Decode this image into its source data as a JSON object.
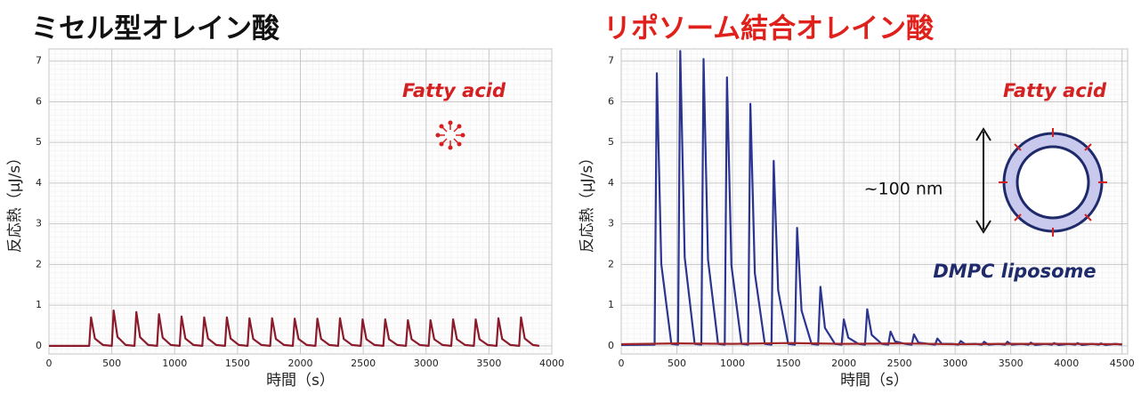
{
  "chart_data": [
    {
      "type": "line",
      "title": "ミセル型オレイン酸",
      "title_color": "#111111",
      "x_label": "時間（s）",
      "y_label": "反応熱（μJ/s）",
      "annotations": [
        "Fatty acid"
      ],
      "xlim": [
        0,
        4000
      ],
      "xticks": [
        0,
        500,
        1000,
        1500,
        2000,
        2500,
        3000,
        3500,
        4000
      ],
      "ylim": [
        -0.2,
        7.3
      ],
      "yticks": [
        0,
        1,
        2,
        3,
        4,
        5,
        6,
        7
      ],
      "grid": true,
      "series": [
        {
          "color": "#8b1a2a",
          "x": [
            0,
            320,
            335,
            365,
            430,
            500,
            515,
            545,
            610,
            680,
            695,
            725,
            790,
            860,
            875,
            905,
            970,
            1040,
            1055,
            1085,
            1150,
            1220,
            1235,
            1265,
            1330,
            1400,
            1415,
            1445,
            1510,
            1580,
            1595,
            1625,
            1690,
            1760,
            1775,
            1805,
            1870,
            1940,
            1955,
            1985,
            2050,
            2120,
            2135,
            2165,
            2230,
            2300,
            2315,
            2345,
            2410,
            2480,
            2495,
            2525,
            2590,
            2660,
            2675,
            2705,
            2770,
            2840,
            2855,
            2885,
            2950,
            3020,
            3035,
            3065,
            3130,
            3200,
            3215,
            3245,
            3310,
            3380,
            3395,
            3425,
            3490,
            3560,
            3575,
            3605,
            3670,
            3740,
            3755,
            3785,
            3850,
            3900
          ],
          "values": [
            0,
            0,
            0.7,
            0.18,
            0.02,
            0,
            0.87,
            0.22,
            0.02,
            0,
            0.83,
            0.21,
            0.02,
            0,
            0.78,
            0.2,
            0.02,
            0,
            0.72,
            0.18,
            0.02,
            0,
            0.7,
            0.18,
            0.02,
            0,
            0.7,
            0.18,
            0.02,
            0,
            0.68,
            0.17,
            0.02,
            0,
            0.68,
            0.17,
            0.02,
            0,
            0.67,
            0.17,
            0.02,
            0,
            0.67,
            0.17,
            0.02,
            0,
            0.68,
            0.17,
            0.02,
            0,
            0.65,
            0.16,
            0.02,
            0,
            0.65,
            0.16,
            0.02,
            0,
            0.63,
            0.16,
            0.02,
            0,
            0.63,
            0.16,
            0.02,
            0,
            0.65,
            0.16,
            0.02,
            0,
            0.65,
            0.16,
            0.02,
            0,
            0.68,
            0.17,
            0.02,
            0,
            0.7,
            0.18,
            0.02,
            0
          ]
        }
      ]
    },
    {
      "type": "line",
      "title": "リポソーム結合オレイン酸",
      "title_color": "#e0201b",
      "x_label": "時間（s）",
      "y_label": "反応熱（μJ/s）",
      "annotations": [
        "Fatty acid",
        "~100 nm",
        "DMPC liposome"
      ],
      "xlim": [
        0,
        4550
      ],
      "xticks": [
        0,
        500,
        1000,
        1500,
        2000,
        2500,
        3000,
        3500,
        4000,
        4500
      ],
      "ylim": [
        -0.2,
        7.3
      ],
      "yticks": [
        0,
        1,
        2,
        3,
        4,
        5,
        6,
        7
      ],
      "grid": true,
      "series": [
        {
          "color": "#2b3590",
          "x": [
            0,
            300,
            320,
            360,
            450,
            510,
            530,
            570,
            660,
            720,
            740,
            780,
            870,
            930,
            950,
            990,
            1080,
            1140,
            1160,
            1200,
            1290,
            1350,
            1370,
            1410,
            1500,
            1560,
            1580,
            1620,
            1710,
            1770,
            1790,
            1830,
            1920,
            1980,
            2000,
            2040,
            2130,
            2190,
            2210,
            2250,
            2340,
            2400,
            2420,
            2460,
            2550,
            2610,
            2630,
            2670,
            2760,
            2820,
            2840,
            2880,
            2970,
            3030,
            3050,
            3090,
            3180,
            3240,
            3260,
            3300,
            3390,
            3450,
            3470,
            3510,
            3600,
            3660,
            3680,
            3720,
            3810,
            3870,
            3890,
            3930,
            4020,
            4080,
            4100,
            4140,
            4230,
            4290,
            4310,
            4350,
            4440,
            4500
          ],
          "values": [
            0.02,
            0.03,
            6.7,
            2.01,
            0.05,
            0.03,
            7.25,
            2.18,
            0.05,
            0.03,
            7.05,
            2.12,
            0.05,
            0.03,
            6.6,
            1.98,
            0.05,
            0.03,
            5.95,
            1.79,
            0.05,
            0.03,
            4.55,
            1.37,
            0.05,
            0.03,
            2.9,
            0.87,
            0.05,
            0.03,
            1.45,
            0.44,
            0.05,
            0.03,
            0.65,
            0.2,
            0.05,
            0.03,
            0.9,
            0.27,
            0.05,
            0.03,
            0.35,
            0.11,
            0.05,
            0.03,
            0.28,
            0.08,
            0.05,
            0.03,
            0.18,
            0.05,
            0.05,
            0.03,
            0.12,
            0.04,
            0.05,
            0.03,
            0.1,
            0.03,
            0.05,
            0.03,
            0.1,
            0.03,
            0.05,
            0.03,
            0.08,
            0.02,
            0.05,
            0.03,
            0.07,
            0.02,
            0.05,
            0.03,
            0.07,
            0.02,
            0.05,
            0.03,
            0.06,
            0.02,
            0.05,
            0.03
          ]
        },
        {
          "color": "#a0262a",
          "x": [
            0,
            500,
            1000,
            1500,
            2000,
            2500,
            3000,
            3500,
            4000,
            4500
          ],
          "values": [
            0.04,
            0.06,
            0.05,
            0.07,
            0.05,
            0.06,
            0.04,
            0.05,
            0.05,
            0.04
          ]
        }
      ]
    }
  ]
}
